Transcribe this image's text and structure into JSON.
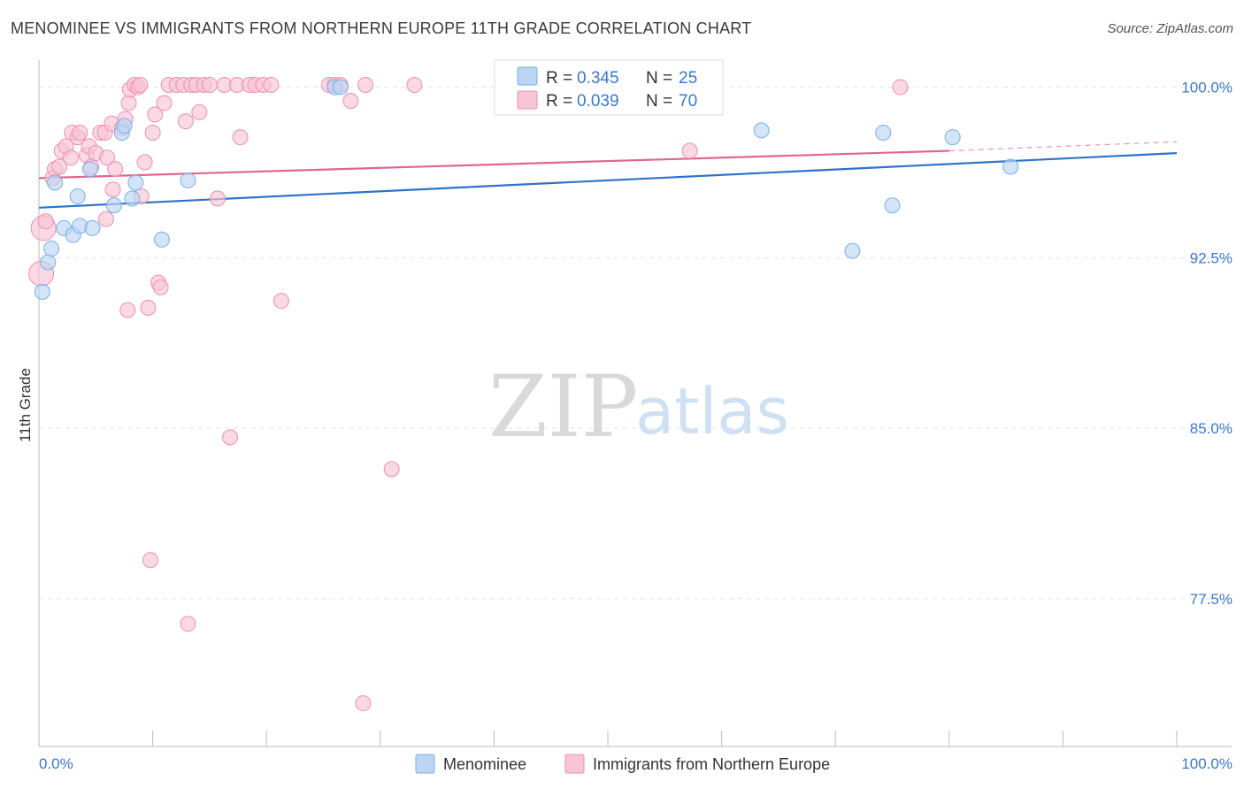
{
  "title": "MENOMINEE VS IMMIGRANTS FROM NORTHERN EUROPE 11TH GRADE CORRELATION CHART",
  "source": "Source: ZipAtlas.com",
  "watermark": {
    "zip": "ZIP",
    "atlas": "atlas"
  },
  "chart_data": {
    "type": "scatter",
    "title": "MENOMINEE VS IMMIGRANTS FROM NORTHERN EUROPE 11TH GRADE CORRELATION CHART",
    "xlabel": "",
    "ylabel": "11th Grade",
    "xlim": [
      0,
      100
    ],
    "ylim": [
      71.0,
      101.5
    ],
    "x_tick_labels": [
      "0.0%",
      "100.0%"
    ],
    "y_ticks": [
      77.5,
      85.0,
      92.5,
      100.0
    ],
    "y_tick_labels": [
      "77.5%",
      "85.0%",
      "92.5%",
      "100.0%"
    ],
    "grid": true,
    "legend": {
      "position": "top-center",
      "entries": [
        {
          "r_label": "R =",
          "r_value": "0.345",
          "n_label": "N =",
          "n_value": "25"
        },
        {
          "r_label": "R =",
          "r_value": "0.039",
          "n_label": "N =",
          "n_value": "70"
        }
      ]
    },
    "series": [
      {
        "name": "Menominee",
        "color": "#7aaee6",
        "fill": "#bcd5f3",
        "line_color": "#2f72c8",
        "trend": {
          "x0": 0,
          "y0": 94.7,
          "x1": 100,
          "y1": 97.1
        },
        "points": [
          [
            0.3,
            91.0
          ],
          [
            0.8,
            92.3
          ],
          [
            1.1,
            92.9
          ],
          [
            1.4,
            95.8
          ],
          [
            2.2,
            93.8
          ],
          [
            3.0,
            93.5
          ],
          [
            3.4,
            95.2
          ],
          [
            3.6,
            93.9
          ],
          [
            4.7,
            93.8
          ],
          [
            4.5,
            96.4
          ],
          [
            6.6,
            94.8
          ],
          [
            7.3,
            98.0
          ],
          [
            7.5,
            98.3
          ],
          [
            8.2,
            95.1
          ],
          [
            8.5,
            95.8
          ],
          [
            10.8,
            93.3
          ],
          [
            13.1,
            95.9
          ],
          [
            26.0,
            100.0
          ],
          [
            26.5,
            100.0
          ],
          [
            63.5,
            98.1
          ],
          [
            71.5,
            92.8
          ],
          [
            74.2,
            98.0
          ],
          [
            75.0,
            94.8
          ],
          [
            80.3,
            97.8
          ],
          [
            85.4,
            96.5
          ]
        ]
      },
      {
        "name": "Immigrants from Northern Europe",
        "color": "#ec8fb0",
        "fill": "#f7c5d6",
        "line_color": "#e0668e",
        "trend": {
          "x0": 0,
          "y0": 96.0,
          "x1": 80,
          "y1": 97.2
        },
        "trend_dash": {
          "x0": 80,
          "y0": 97.2,
          "x1": 100,
          "y1": 97.6
        },
        "points": [
          [
            0.2,
            91.8
          ],
          [
            0.4,
            93.8
          ],
          [
            0.6,
            94.1
          ],
          [
            1.2,
            96.0
          ],
          [
            1.4,
            96.4
          ],
          [
            1.8,
            96.5
          ],
          [
            2.0,
            97.2
          ],
          [
            2.4,
            97.4
          ],
          [
            2.8,
            96.9
          ],
          [
            2.9,
            98.0
          ],
          [
            3.4,
            97.8
          ],
          [
            3.6,
            98.0
          ],
          [
            4.2,
            97.0
          ],
          [
            4.4,
            97.4
          ],
          [
            4.6,
            96.5
          ],
          [
            5.0,
            97.1
          ],
          [
            5.4,
            98.0
          ],
          [
            5.8,
            98.0
          ],
          [
            5.9,
            94.2
          ],
          [
            6.0,
            96.9
          ],
          [
            6.4,
            98.4
          ],
          [
            6.5,
            95.5
          ],
          [
            6.7,
            96.4
          ],
          [
            7.3,
            98.2
          ],
          [
            7.6,
            98.6
          ],
          [
            7.8,
            90.2
          ],
          [
            7.9,
            99.3
          ],
          [
            8.0,
            99.9
          ],
          [
            8.4,
            100.1
          ],
          [
            8.7,
            100.0
          ],
          [
            8.9,
            100.1
          ],
          [
            9.0,
            95.2
          ],
          [
            9.3,
            96.7
          ],
          [
            9.6,
            90.3
          ],
          [
            9.8,
            79.2
          ],
          [
            10.0,
            98.0
          ],
          [
            10.2,
            98.8
          ],
          [
            10.5,
            91.4
          ],
          [
            10.7,
            91.2
          ],
          [
            11.0,
            99.3
          ],
          [
            11.4,
            100.1
          ],
          [
            12.1,
            100.1
          ],
          [
            12.7,
            100.1
          ],
          [
            12.9,
            98.5
          ],
          [
            13.1,
            76.4
          ],
          [
            13.4,
            100.1
          ],
          [
            13.8,
            100.1
          ],
          [
            14.1,
            98.9
          ],
          [
            14.5,
            100.1
          ],
          [
            15.0,
            100.1
          ],
          [
            15.7,
            95.1
          ],
          [
            16.3,
            100.1
          ],
          [
            16.8,
            84.6
          ],
          [
            17.4,
            100.1
          ],
          [
            17.7,
            97.8
          ],
          [
            18.5,
            100.1
          ],
          [
            19.0,
            100.1
          ],
          [
            19.7,
            100.1
          ],
          [
            20.4,
            100.1
          ],
          [
            21.3,
            90.6
          ],
          [
            25.5,
            100.1
          ],
          [
            26.0,
            100.1
          ],
          [
            26.5,
            100.1
          ],
          [
            27.4,
            99.4
          ],
          [
            28.5,
            72.9
          ],
          [
            28.7,
            100.1
          ],
          [
            31.0,
            83.2
          ],
          [
            33.0,
            100.1
          ],
          [
            57.2,
            97.2
          ],
          [
            75.7,
            100.0
          ]
        ]
      }
    ]
  }
}
